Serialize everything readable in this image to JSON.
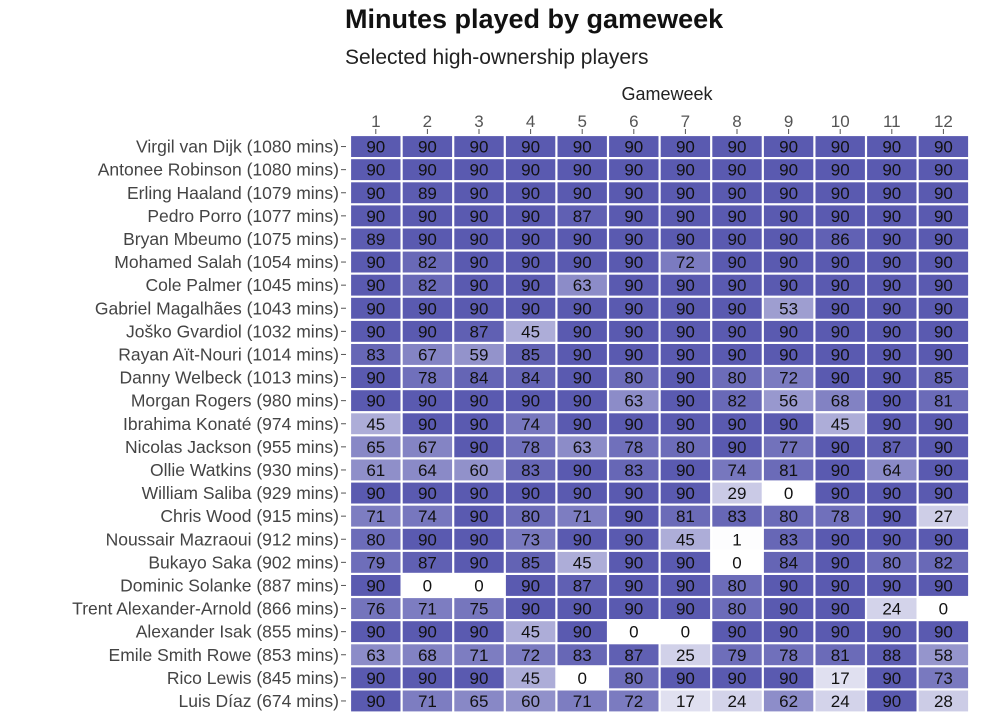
{
  "chart_data": {
    "type": "heatmap",
    "title": "Minutes played by gameweek",
    "subtitle": "Selected high-ownership players",
    "xlabel": "Gameweek",
    "ylabel": "",
    "x": [
      "1",
      "2",
      "3",
      "4",
      "5",
      "6",
      "7",
      "8",
      "9",
      "10",
      "11",
      "12"
    ],
    "value_range": [
      0,
      90
    ],
    "colors": {
      "low": "#ffffff",
      "high": "#5a5ab0"
    },
    "legend": "none",
    "rows": [
      {
        "label": "Virgil van Dijk (1080 mins)",
        "values": [
          90,
          90,
          90,
          90,
          90,
          90,
          90,
          90,
          90,
          90,
          90,
          90
        ]
      },
      {
        "label": "Antonee Robinson (1080 mins)",
        "values": [
          90,
          90,
          90,
          90,
          90,
          90,
          90,
          90,
          90,
          90,
          90,
          90
        ]
      },
      {
        "label": "Erling Haaland (1079 mins)",
        "values": [
          90,
          89,
          90,
          90,
          90,
          90,
          90,
          90,
          90,
          90,
          90,
          90
        ]
      },
      {
        "label": "Pedro Porro (1077 mins)",
        "values": [
          90,
          90,
          90,
          90,
          87,
          90,
          90,
          90,
          90,
          90,
          90,
          90
        ]
      },
      {
        "label": "Bryan Mbeumo (1075 mins)",
        "values": [
          89,
          90,
          90,
          90,
          90,
          90,
          90,
          90,
          90,
          86,
          90,
          90
        ]
      },
      {
        "label": "Mohamed Salah (1054 mins)",
        "values": [
          90,
          82,
          90,
          90,
          90,
          90,
          72,
          90,
          90,
          90,
          90,
          90
        ]
      },
      {
        "label": "Cole Palmer (1045 mins)",
        "values": [
          90,
          82,
          90,
          90,
          63,
          90,
          90,
          90,
          90,
          90,
          90,
          90
        ]
      },
      {
        "label": "Gabriel Magalhães (1043 mins)",
        "values": [
          90,
          90,
          90,
          90,
          90,
          90,
          90,
          90,
          53,
          90,
          90,
          90
        ]
      },
      {
        "label": "Joško Gvardiol (1032 mins)",
        "values": [
          90,
          90,
          87,
          45,
          90,
          90,
          90,
          90,
          90,
          90,
          90,
          90
        ]
      },
      {
        "label": "Rayan Aït-Nouri (1014 mins)",
        "values": [
          83,
          67,
          59,
          85,
          90,
          90,
          90,
          90,
          90,
          90,
          90,
          90
        ]
      },
      {
        "label": "Danny Welbeck (1013 mins)",
        "values": [
          90,
          78,
          84,
          84,
          90,
          80,
          90,
          80,
          72,
          90,
          90,
          85
        ]
      },
      {
        "label": "Morgan Rogers (980 mins)",
        "values": [
          90,
          90,
          90,
          90,
          90,
          63,
          90,
          82,
          56,
          68,
          90,
          81
        ]
      },
      {
        "label": "Ibrahima Konaté (974 mins)",
        "values": [
          45,
          90,
          90,
          74,
          90,
          90,
          90,
          90,
          90,
          45,
          90,
          90
        ]
      },
      {
        "label": "Nicolas Jackson (955 mins)",
        "values": [
          65,
          67,
          90,
          78,
          63,
          78,
          80,
          90,
          77,
          90,
          87,
          90
        ]
      },
      {
        "label": "Ollie Watkins (930 mins)",
        "values": [
          61,
          64,
          60,
          83,
          90,
          83,
          90,
          74,
          81,
          90,
          64,
          90
        ]
      },
      {
        "label": "William Saliba (929 mins)",
        "values": [
          90,
          90,
          90,
          90,
          90,
          90,
          90,
          29,
          0,
          90,
          90,
          90
        ]
      },
      {
        "label": "Chris Wood (915 mins)",
        "values": [
          71,
          74,
          90,
          80,
          71,
          90,
          81,
          83,
          80,
          78,
          90,
          27
        ]
      },
      {
        "label": "Noussair Mazraoui (912 mins)",
        "values": [
          80,
          90,
          90,
          73,
          90,
          90,
          45,
          1,
          83,
          90,
          90,
          90
        ]
      },
      {
        "label": "Bukayo Saka (902 mins)",
        "values": [
          79,
          87,
          90,
          85,
          45,
          90,
          90,
          0,
          84,
          90,
          80,
          82
        ]
      },
      {
        "label": "Dominic Solanke (887 mins)",
        "values": [
          90,
          0,
          0,
          90,
          87,
          90,
          90,
          80,
          90,
          90,
          90,
          90
        ]
      },
      {
        "label": "Trent Alexander-Arnold (866 mins)",
        "values": [
          76,
          71,
          75,
          90,
          90,
          90,
          90,
          80,
          90,
          90,
          24,
          0
        ]
      },
      {
        "label": "Alexander Isak (855 mins)",
        "values": [
          90,
          90,
          90,
          45,
          90,
          0,
          0,
          90,
          90,
          90,
          90,
          90
        ]
      },
      {
        "label": "Emile Smith Rowe (853 mins)",
        "values": [
          63,
          68,
          71,
          72,
          83,
          87,
          25,
          79,
          78,
          81,
          88,
          58
        ]
      },
      {
        "label": "Rico Lewis (845 mins)",
        "values": [
          90,
          90,
          90,
          45,
          0,
          80,
          90,
          90,
          90,
          17,
          90,
          73
        ]
      },
      {
        "label": "Luis Díaz (674 mins)",
        "values": [
          90,
          71,
          65,
          60,
          71,
          72,
          17,
          24,
          62,
          24,
          90,
          28
        ]
      }
    ]
  }
}
